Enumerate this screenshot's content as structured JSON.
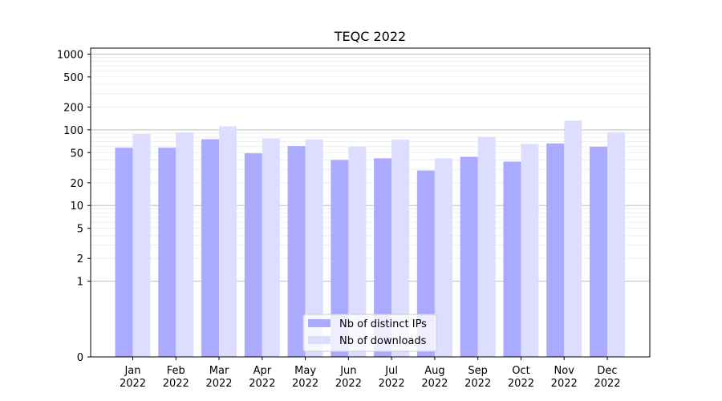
{
  "chart_data": {
    "type": "bar",
    "title": "TEQC 2022",
    "xlabel": "",
    "ylabel": "",
    "yscale": "symlog",
    "ylim": [
      0,
      1200
    ],
    "yticks": [
      0,
      1,
      2,
      5,
      10,
      20,
      50,
      100,
      200,
      500,
      1000
    ],
    "grid": "y",
    "legend_position": "lower center",
    "categories": [
      [
        "Jan",
        "2022"
      ],
      [
        "Feb",
        "2022"
      ],
      [
        "Mar",
        "2022"
      ],
      [
        "Apr",
        "2022"
      ],
      [
        "May",
        "2022"
      ],
      [
        "Jun",
        "2022"
      ],
      [
        "Jul",
        "2022"
      ],
      [
        "Aug",
        "2022"
      ],
      [
        "Sep",
        "2022"
      ],
      [
        "Oct",
        "2022"
      ],
      [
        "Nov",
        "2022"
      ],
      [
        "Dec",
        "2022"
      ]
    ],
    "series": [
      {
        "name": "Nb of distinct IPs",
        "color": "#aaaaff",
        "values": [
          58,
          58,
          75,
          49,
          61,
          40,
          42,
          29,
          44,
          38,
          66,
          60
        ]
      },
      {
        "name": "Nb of downloads",
        "color": "#ddddff",
        "values": [
          88,
          92,
          111,
          77,
          75,
          60,
          74,
          42,
          81,
          65,
          132,
          93
        ]
      }
    ]
  }
}
